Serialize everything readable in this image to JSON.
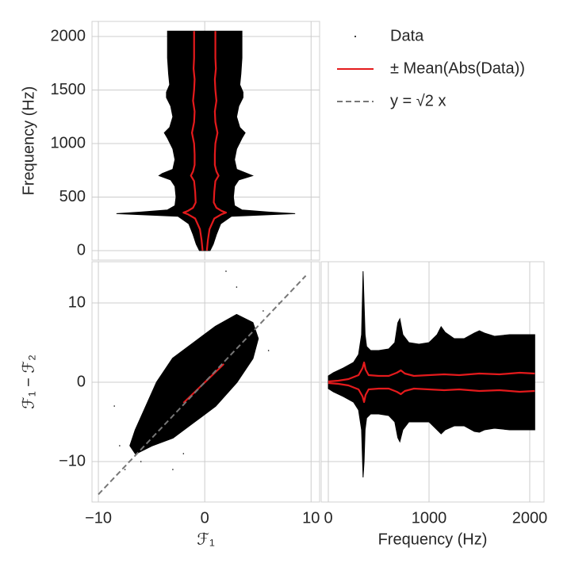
{
  "chart_data": [
    {
      "type": "scatter",
      "orientation": "horizontal",
      "ylabel": "Frequency (Hz)",
      "xlim": [
        -10.6,
        10.8
      ],
      "ylim": [
        -89,
        2141
      ],
      "xticks": [
        -10,
        0,
        10
      ],
      "yticks": [
        0,
        500,
        1000,
        1500,
        2000
      ],
      "grid": true,
      "legend": "upper right",
      "series": [
        {
          "name": "Data",
          "style": "range",
          "color": "#000000",
          "x": [
            0,
            60,
            150,
            250,
            320,
            345,
            360,
            380,
            420,
            500,
            600,
            660,
            700,
            720,
            760,
            850,
            950,
            1050,
            1100,
            1150,
            1250,
            1350,
            1430,
            1480,
            1550,
            1650,
            1800,
            1950,
            2050
          ],
          "high": [
            0.5,
            0.8,
            1.1,
            1.5,
            2.5,
            8.5,
            6,
            3.5,
            2.8,
            2.7,
            2.8,
            3.2,
            4.5,
            4,
            3,
            2.8,
            3,
            3.5,
            3.8,
            3.3,
            3,
            3.2,
            3.6,
            3.6,
            3.3,
            3.4,
            3.5,
            3.5,
            3.5
          ],
          "low": [
            -0.5,
            -0.8,
            -1.1,
            -1.5,
            -2.5,
            -8.3,
            -6,
            -3.5,
            -2.8,
            -2.7,
            -2.8,
            -3.2,
            -4.3,
            -4,
            -3,
            -2.8,
            -3,
            -3.5,
            -3.8,
            -3.3,
            -3,
            -3.2,
            -3.6,
            -3.6,
            -3.3,
            -3.4,
            -3.5,
            -3.5,
            -3.5
          ]
        },
        {
          "name": "± Mean(Abs(Data))",
          "style": "line",
          "color": "#e41a1c",
          "x": [
            0,
            100,
            200,
            300,
            340,
            355,
            370,
            400,
            450,
            550,
            650,
            700,
            740,
            800,
            900,
            1000,
            1100,
            1200,
            1300,
            1400,
            1500,
            1600,
            1700,
            1800,
            1900,
            2050
          ],
          "values": [
            0.2,
            0.3,
            0.45,
            0.9,
            1.6,
            2,
            1.6,
            1.1,
            0.85,
            0.9,
            1.0,
            1.3,
            1.1,
            0.95,
            0.95,
            1.0,
            1.2,
            1.0,
            0.95,
            1.1,
            1.0,
            0.95,
            1.05,
            1.0,
            1.0,
            1.0
          ]
        },
        {
          "style": "line",
          "color": "#e41a1c",
          "x": [
            0,
            100,
            200,
            300,
            340,
            355,
            370,
            400,
            450,
            550,
            650,
            700,
            740,
            800,
            900,
            1000,
            1100,
            1200,
            1300,
            1400,
            1500,
            1600,
            1700,
            1800,
            1900,
            2050
          ],
          "values": [
            -0.2,
            -0.3,
            -0.45,
            -0.9,
            -1.6,
            -2,
            -1.6,
            -1.1,
            -0.85,
            -0.9,
            -1.0,
            -1.3,
            -1.1,
            -0.95,
            -0.95,
            -1.0,
            -1.2,
            -1.0,
            -0.95,
            -1.1,
            -1.0,
            -0.95,
            -1.05,
            -1.0,
            -1.0,
            -1.0
          ]
        }
      ]
    },
    {
      "type": "scatter",
      "xlabel": "ℱ₁",
      "ylabel": "ℱ₁ − ℱ₂",
      "xlim": [
        -10.6,
        10.8
      ],
      "ylim": [
        -15.1,
        15.2
      ],
      "xticks": [
        {
          "value": -10,
          "label": "−10"
        },
        0,
        10
      ],
      "yticks": [
        {
          "value": -10,
          "label": "−10"
        },
        0,
        10
      ],
      "grid": true,
      "series": [
        {
          "style": "fill",
          "color": "#000000",
          "x": [
            -6.5,
            -5,
            -3,
            -1,
            1,
            3,
            4.5,
            5,
            4.5,
            3,
            1,
            -1,
            -3,
            -4.5,
            -5.5,
            -6.5,
            -7
          ],
          "values": [
            -9,
            -8,
            -7,
            -5,
            -3,
            0,
            3,
            5.5,
            7.5,
            8.5,
            7,
            5,
            3,
            0,
            -3,
            -6,
            -8
          ]
        },
        {
          "style": "points",
          "color": "#000000",
          "x": [
            -8,
            -7.5,
            -3,
            3,
            6,
            7,
            2,
            -2,
            -8.5,
            5.5,
            -6
          ],
          "values": [
            -8,
            -11,
            -11,
            12,
            4,
            10,
            14,
            -9,
            -3,
            9,
            -10
          ]
        },
        {
          "style": "line",
          "color": "#e41a1c",
          "x": [
            -2,
            1.8
          ],
          "values": [
            -2.6,
            2.3
          ]
        },
        {
          "name": "y = √2 x",
          "style": "dashed",
          "color": "#777777",
          "x": [
            -10,
            9.5
          ],
          "values": [
            -14.14,
            13.43
          ]
        }
      ]
    },
    {
      "type": "scatter",
      "xlabel": "Frequency (Hz)",
      "xlim": [
        -71,
        2142
      ],
      "ylim": [
        -15.1,
        15.2
      ],
      "xticks": [
        0,
        1000,
        2000
      ],
      "yticks": [
        -10,
        0,
        10
      ],
      "grid": true,
      "series": [
        {
          "style": "range",
          "color": "#000000",
          "x": [
            0,
            50,
            150,
            250,
            300,
            330,
            345,
            355,
            365,
            380,
            420,
            500,
            600,
            660,
            690,
            710,
            740,
            800,
            900,
            1000,
            1080,
            1120,
            1160,
            1250,
            1350,
            1450,
            1500,
            1550,
            1650,
            1800,
            1950,
            2050
          ],
          "high": [
            0.8,
            1.2,
            1.8,
            2.5,
            3.5,
            6,
            14,
            10,
            6,
            4.5,
            4,
            4,
            4.2,
            5,
            7.5,
            8,
            6,
            5,
            4.8,
            5,
            6,
            7,
            6.3,
            5.5,
            5.5,
            6.2,
            6.5,
            6.2,
            5.8,
            6,
            6,
            6
          ],
          "low": [
            -0.8,
            -1.2,
            -1.8,
            -2.5,
            -3.5,
            -6,
            -12,
            -10,
            -6,
            -4.5,
            -4,
            -4,
            -4.2,
            -5,
            -7,
            -7.5,
            -6,
            -5,
            -5,
            -5,
            -6,
            -6.5,
            -6,
            -5.5,
            -5.5,
            -6.2,
            -6.3,
            -6,
            -5.8,
            -6,
            -6,
            -6
          ]
        },
        {
          "style": "line",
          "color": "#e41a1c",
          "x": [
            0,
            100,
            200,
            300,
            340,
            355,
            370,
            400,
            500,
            600,
            680,
            720,
            760,
            850,
            1000,
            1150,
            1300,
            1500,
            1700,
            1900,
            2050
          ],
          "values": [
            0.1,
            0.2,
            0.4,
            0.9,
            1.8,
            2.5,
            1.6,
            0.9,
            0.8,
            0.8,
            1.2,
            1.5,
            1.1,
            0.8,
            0.9,
            1.0,
            0.9,
            1.1,
            1.0,
            1.2,
            1.1
          ]
        },
        {
          "style": "line",
          "color": "#e41a1c",
          "x": [
            0,
            100,
            200,
            300,
            340,
            355,
            370,
            400,
            500,
            600,
            680,
            720,
            760,
            850,
            1000,
            1150,
            1300,
            1500,
            1700,
            1900,
            2050
          ],
          "values": [
            -0.1,
            -0.2,
            -0.4,
            -0.9,
            -1.8,
            -2.5,
            -1.6,
            -0.9,
            -0.8,
            -0.8,
            -1.2,
            -1.5,
            -1.1,
            -0.8,
            -0.9,
            -1.0,
            -0.9,
            -1.1,
            -1.0,
            -1.2,
            -1.1
          ]
        }
      ]
    }
  ]
}
